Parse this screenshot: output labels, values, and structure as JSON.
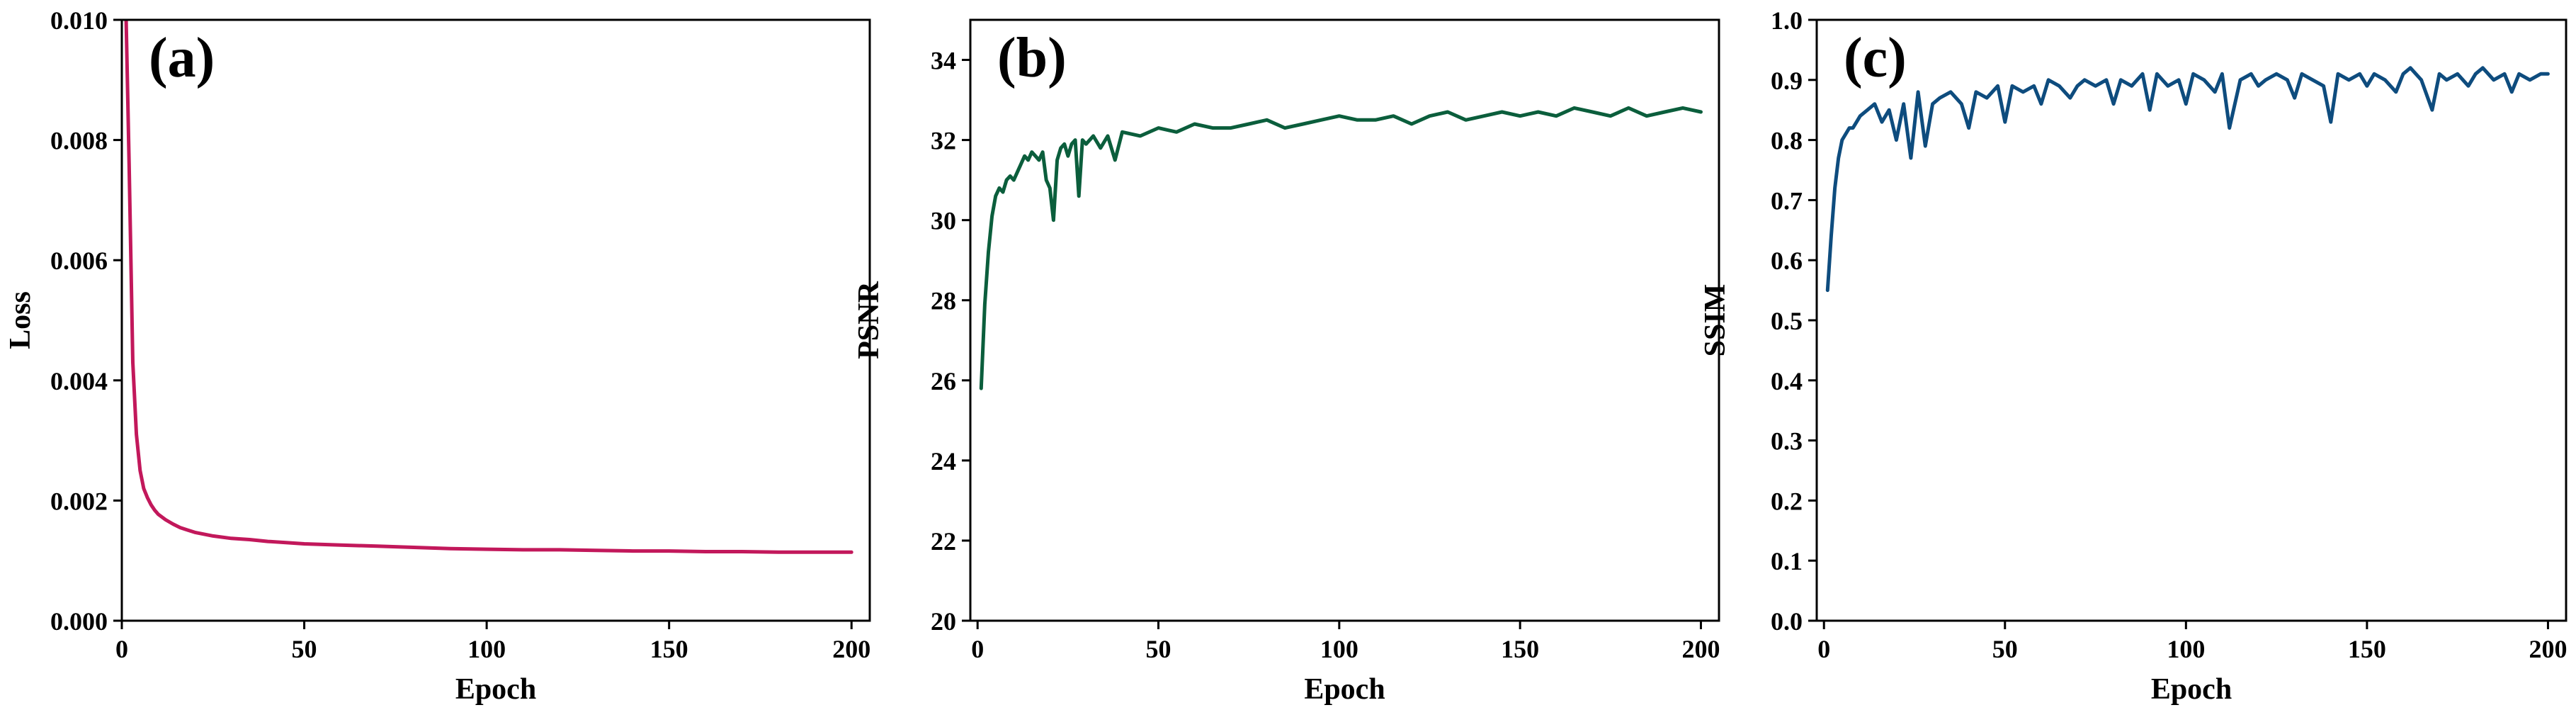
{
  "chart_data": [
    {
      "type": "line",
      "panel_label": "(a)",
      "xlabel": "Epoch",
      "ylabel": "Loss",
      "xlim": [
        0,
        205
      ],
      "ylim": [
        0,
        0.01
      ],
      "xticks": [
        0,
        50,
        100,
        150,
        200
      ],
      "yticks": [
        0,
        0.002,
        0.004,
        0.006,
        0.008,
        0.01
      ],
      "xtick_labels": [
        "0",
        "50",
        "100",
        "150",
        "200"
      ],
      "ytick_labels": [
        "0.000",
        "0.002",
        "0.004",
        "0.006",
        "0.008",
        "0.010"
      ],
      "color": "#C2185B",
      "series": [
        {
          "x": [
            1,
            2,
            3,
            4,
            5,
            6,
            7,
            8,
            9,
            10,
            12,
            14,
            16,
            18,
            20,
            25,
            30,
            35,
            40,
            45,
            50,
            60,
            70,
            80,
            90,
            100,
            110,
            120,
            130,
            140,
            150,
            160,
            170,
            180,
            190,
            200
          ],
          "values": [
            0.0105,
            0.0076,
            0.0043,
            0.0031,
            0.0025,
            0.0022,
            0.00205,
            0.00193,
            0.00184,
            0.00177,
            0.00168,
            0.00161,
            0.00155,
            0.00151,
            0.00147,
            0.00141,
            0.00137,
            0.00135,
            0.00132,
            0.0013,
            0.00128,
            0.00126,
            0.00124,
            0.00122,
            0.0012,
            0.00119,
            0.00118,
            0.00118,
            0.00117,
            0.00116,
            0.00116,
            0.00115,
            0.00115,
            0.00114,
            0.00114,
            0.00114
          ]
        }
      ]
    },
    {
      "type": "line",
      "panel_label": "(b)",
      "xlabel": "Epoch",
      "ylabel": "PSNR",
      "xlim": [
        -2,
        205
      ],
      "ylim": [
        20,
        35
      ],
      "xticks": [
        0,
        50,
        100,
        150,
        200
      ],
      "yticks": [
        20,
        22,
        24,
        26,
        28,
        30,
        32,
        34
      ],
      "xtick_labels": [
        "0",
        "50",
        "100",
        "150",
        "200"
      ],
      "ytick_labels": [
        "20",
        "22",
        "24",
        "26",
        "28",
        "30",
        "32",
        "34"
      ],
      "color": "#0B5E3C",
      "series": [
        {
          "x": [
            1,
            2,
            3,
            4,
            5,
            6,
            7,
            8,
            9,
            10,
            11,
            12,
            13,
            14,
            15,
            16,
            17,
            18,
            19,
            20,
            21,
            22,
            23,
            24,
            25,
            26,
            27,
            28,
            29,
            30,
            32,
            34,
            36,
            38,
            40,
            45,
            50,
            55,
            60,
            65,
            70,
            75,
            80,
            85,
            90,
            95,
            100,
            105,
            110,
            115,
            120,
            125,
            130,
            135,
            140,
            145,
            150,
            155,
            160,
            165,
            170,
            175,
            180,
            185,
            190,
            195,
            200
          ],
          "values": [
            25.8,
            27.9,
            29.2,
            30.1,
            30.6,
            30.8,
            30.7,
            31.0,
            31.1,
            31.0,
            31.2,
            31.4,
            31.6,
            31.5,
            31.7,
            31.6,
            31.5,
            31.7,
            31.0,
            30.8,
            30.0,
            31.5,
            31.8,
            31.9,
            31.6,
            31.9,
            32.0,
            30.6,
            32.0,
            31.9,
            32.1,
            31.8,
            32.1,
            31.5,
            32.2,
            32.1,
            32.3,
            32.2,
            32.4,
            32.3,
            32.3,
            32.4,
            32.5,
            32.3,
            32.4,
            32.5,
            32.6,
            32.5,
            32.5,
            32.6,
            32.4,
            32.6,
            32.7,
            32.5,
            32.6,
            32.7,
            32.6,
            32.7,
            32.6,
            32.8,
            32.7,
            32.6,
            32.8,
            32.6,
            32.7,
            32.8,
            32.7
          ]
        }
      ]
    },
    {
      "type": "line",
      "panel_label": "(c)",
      "xlabel": "Epoch",
      "ylabel": "SSIM",
      "xlim": [
        -2,
        205
      ],
      "ylim": [
        0,
        1.0
      ],
      "xticks": [
        0,
        50,
        100,
        150,
        200
      ],
      "yticks": [
        0,
        0.1,
        0.2,
        0.3,
        0.4,
        0.5,
        0.6,
        0.7,
        0.8,
        0.9,
        1.0
      ],
      "xtick_labels": [
        "0",
        "50",
        "100",
        "150",
        "200"
      ],
      "ytick_labels": [
        "0.0",
        "0.1",
        "0.2",
        "0.3",
        "0.4",
        "0.5",
        "0.6",
        "0.7",
        "0.8",
        "0.9",
        "1.0"
      ],
      "color": "#0E4C7E",
      "series": [
        {
          "x": [
            1,
            2,
            3,
            4,
            5,
            6,
            7,
            8,
            9,
            10,
            12,
            14,
            16,
            18,
            20,
            22,
            24,
            26,
            28,
            30,
            32,
            35,
            38,
            40,
            42,
            45,
            48,
            50,
            52,
            55,
            58,
            60,
            62,
            65,
            68,
            70,
            72,
            75,
            78,
            80,
            82,
            85,
            88,
            90,
            92,
            95,
            98,
            100,
            102,
            105,
            108,
            110,
            112,
            115,
            118,
            120,
            122,
            125,
            128,
            130,
            132,
            135,
            138,
            140,
            142,
            145,
            148,
            150,
            152,
            155,
            158,
            160,
            162,
            165,
            168,
            170,
            172,
            175,
            178,
            180,
            182,
            185,
            188,
            190,
            192,
            195,
            198,
            200
          ],
          "values": [
            0.55,
            0.64,
            0.72,
            0.77,
            0.8,
            0.81,
            0.82,
            0.82,
            0.83,
            0.84,
            0.85,
            0.86,
            0.83,
            0.85,
            0.8,
            0.86,
            0.77,
            0.88,
            0.79,
            0.86,
            0.87,
            0.88,
            0.86,
            0.82,
            0.88,
            0.87,
            0.89,
            0.83,
            0.89,
            0.88,
            0.89,
            0.86,
            0.9,
            0.89,
            0.87,
            0.89,
            0.9,
            0.89,
            0.9,
            0.86,
            0.9,
            0.89,
            0.91,
            0.85,
            0.91,
            0.89,
            0.9,
            0.86,
            0.91,
            0.9,
            0.88,
            0.91,
            0.82,
            0.9,
            0.91,
            0.89,
            0.9,
            0.91,
            0.9,
            0.87,
            0.91,
            0.9,
            0.89,
            0.83,
            0.91,
            0.9,
            0.91,
            0.89,
            0.91,
            0.9,
            0.88,
            0.91,
            0.92,
            0.9,
            0.85,
            0.91,
            0.9,
            0.91,
            0.89,
            0.91,
            0.92,
            0.9,
            0.91,
            0.88,
            0.91,
            0.9,
            0.91,
            0.91
          ]
        }
      ]
    }
  ]
}
